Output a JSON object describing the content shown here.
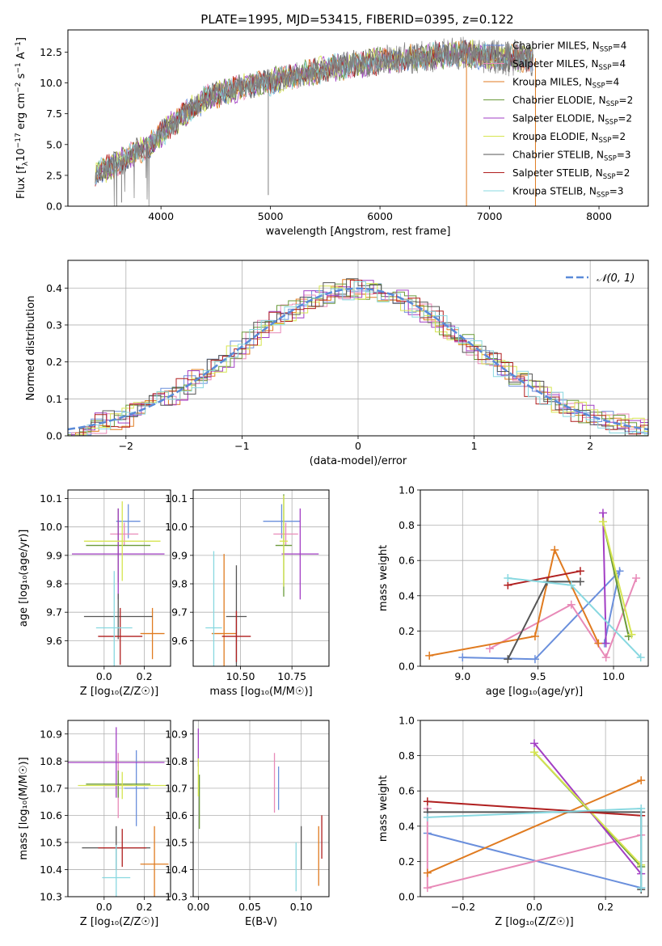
{
  "figure": {
    "title": "PLATE=1995, MJD=53415, FIBERID=0395, z=0.122"
  },
  "series_styles": [
    {
      "name": "Chabrier MILES, N$_{SSP}$=4",
      "label_main": "Chabrier MILES, N",
      "label_sub": "SSP",
      "label_tail": "=4",
      "color": "#6a8fdc"
    },
    {
      "name": "Salpeter MILES, N$_{SSP}$=4",
      "label_main": "Salpeter MILES, N",
      "label_sub": "SSP",
      "label_tail": "=4",
      "color": "#e88ab8"
    },
    {
      "name": "Kroupa MILES, N$_{SSP}$=4",
      "label_main": "Kroupa MILES, N",
      "label_sub": "SSP",
      "label_tail": "=4",
      "color": "#e07b20"
    },
    {
      "name": "Chabrier ELODIE, N$_{SSP}$=2",
      "label_main": "Chabrier ELODIE, N",
      "label_sub": "SSP",
      "label_tail": "=2",
      "color": "#6a9a3a"
    },
    {
      "name": "Salpeter ELODIE, N$_{SSP}$=2",
      "label_main": "Salpeter ELODIE, N",
      "label_sub": "SSP",
      "label_tail": "=2",
      "color": "#a23ec4"
    },
    {
      "name": "Kroupa ELODIE, N$_{SSP}$=2",
      "label_main": "Kroupa ELODIE, N",
      "label_sub": "SSP",
      "label_tail": "=2",
      "color": "#d6e550"
    },
    {
      "name": "Chabrier STELIB, N$_{SSP}$=3",
      "label_main": "Chabrier STELIB, N",
      "label_sub": "SSP",
      "label_tail": "=3",
      "color": "#555555"
    },
    {
      "name": "Salpeter STELIB, N$_{SSP}$=2",
      "label_main": "Salpeter STELIB, N",
      "label_sub": "SSP",
      "label_tail": "=2",
      "color": "#b01f1f"
    },
    {
      "name": "Kroupa STELIB, N$_{SSP}$=3",
      "label_main": "Kroupa STELIB, N",
      "label_sub": "SSP",
      "label_tail": "=3",
      "color": "#88d8e0"
    }
  ],
  "chart_data": [
    {
      "id": "spectrum",
      "type": "line",
      "title": "PLATE=1995, MJD=53415, FIBERID=0395, z=0.122",
      "xlabel": "wavelength [Angstrom, rest frame]",
      "ylabel_main": "Flux [f",
      "ylabel_sub": "λ",
      "ylabel_mid": "10",
      "ylabel_sup1": "−17",
      "ylabel_mid2": " erg cm",
      "ylabel_sup2": "−2",
      "ylabel_mid3": " s",
      "ylabel_sup3": "−1",
      "ylabel_mid4": " A",
      "ylabel_sup4": "−1",
      "ylabel_end": "]",
      "xlim": [
        3150,
        8450
      ],
      "ylim": [
        0,
        14.3
      ],
      "xticks": [
        4000,
        5000,
        6000,
        7000,
        8000
      ],
      "yticks": [
        0.0,
        2.5,
        5.0,
        7.5,
        10.0,
        12.5
      ],
      "ytick_labels": [
        "0.0",
        "2.5",
        "5.0",
        "7.5",
        "10.0",
        "12.5"
      ],
      "data_color": "#808080",
      "continuum": {
        "x": [
          3400,
          3500,
          3600,
          3700,
          3800,
          3900,
          4000,
          4100,
          4200,
          4300,
          4400,
          4600,
          4800,
          5000,
          5200,
          5400,
          5600,
          5800,
          6000,
          6200,
          6400,
          6600,
          6800,
          7000,
          7200,
          7400
        ],
        "y": [
          2.8,
          3.0,
          3.4,
          4.0,
          4.5,
          5.0,
          5.8,
          6.6,
          7.4,
          8.0,
          8.7,
          9.3,
          9.8,
          10.1,
          10.6,
          10.9,
          11.3,
          11.5,
          11.8,
          12.0,
          12.1,
          12.3,
          12.4,
          12.1,
          12.0,
          12.0
        ]
      }
    },
    {
      "id": "residuals",
      "type": "bar",
      "xlabel": "(data-model)/error",
      "ylabel": "Normed distribution",
      "xlim": [
        -2.5,
        2.5
      ],
      "ylim": [
        0,
        0.475
      ],
      "xticks": [
        -2,
        -1,
        0,
        1,
        2
      ],
      "xtick_labels": [
        "−2",
        "−1",
        "0",
        "1",
        "2"
      ],
      "yticks": [
        0.0,
        0.1,
        0.2,
        0.3,
        0.4
      ],
      "ytick_labels": [
        "0.0",
        "0.1",
        "0.2",
        "0.3",
        "0.4"
      ],
      "grid": true,
      "legend": "$\\mathcal{N}(0,1)$",
      "legend_position": "top-right",
      "gaussian": {
        "mean": 0,
        "sigma": 1,
        "color": "#5a8ad8"
      }
    },
    {
      "id": "z-age",
      "type": "scatter",
      "xlabel": "Z [log₁₀(Z/Z☉)]",
      "ylabel": "age  [log₁₀(age/yr)]",
      "xlim": [
        -0.18,
        0.33
      ],
      "ylim": [
        9.51,
        10.13
      ],
      "xticks": [
        0.0,
        0.2
      ],
      "xtick_labels": [
        "0.0",
        "0.2"
      ],
      "yticks": [
        9.6,
        9.7,
        9.8,
        9.9,
        10.0,
        10.1
      ],
      "ytick_labels": [
        "9.6",
        "9.7",
        "9.8",
        "9.9",
        "10.0",
        "10.1"
      ],
      "points": [
        {
          "series": 0,
          "x": 0.12,
          "y": 10.02,
          "xerr": 0.06,
          "yerr": 0.06
        },
        {
          "series": 1,
          "x": 0.1,
          "y": 9.975,
          "xerr": 0.07,
          "yerr": 0.04
        },
        {
          "series": 2,
          "x": 0.24,
          "y": 9.625,
          "xerr": 0.06,
          "yerr": 0.09
        },
        {
          "series": 3,
          "x": 0.07,
          "y": 9.935,
          "xerr": 0.16,
          "yerr": 0.13
        },
        {
          "series": 4,
          "x": 0.07,
          "y": 9.905,
          "xerr": 0.23,
          "yerr": 0.16
        },
        {
          "series": 5,
          "x": 0.09,
          "y": 9.95,
          "xerr": 0.19,
          "yerr": 0.14
        },
        {
          "series": 6,
          "x": 0.07,
          "y": 9.685,
          "xerr": 0.17,
          "yerr": 0.08
        },
        {
          "series": 7,
          "x": 0.08,
          "y": 9.615,
          "xerr": 0.11,
          "yerr": 0.1
        },
        {
          "series": 8,
          "x": 0.05,
          "y": 9.645,
          "xerr": 0.09,
          "yerr": 0.2
        }
      ]
    },
    {
      "id": "mass-age",
      "type": "scatter",
      "xlabel": "mass [log₁₀(M/M☉)]",
      "ylabel": "",
      "xlim": [
        10.27,
        10.93
      ],
      "ylim": [
        9.51,
        10.13
      ],
      "xticks": [
        10.5,
        10.75
      ],
      "xtick_labels": [
        "10.50",
        "10.75"
      ],
      "yticks": [
        9.6,
        9.7,
        9.8,
        9.9,
        10.0,
        10.1
      ],
      "ytick_labels": [
        "9.6",
        "9.7",
        "9.8",
        "9.9",
        "10.0",
        "10.1"
      ],
      "points": [
        {
          "series": 0,
          "x": 10.7,
          "y": 10.02,
          "xerr": 0.09,
          "yerr": 0.06
        },
        {
          "series": 1,
          "x": 10.72,
          "y": 9.975,
          "xerr": 0.06,
          "yerr": 0.04
        },
        {
          "series": 2,
          "x": 10.42,
          "y": 9.625,
          "xerr": 0.06,
          "yerr": 0.28
        },
        {
          "series": 3,
          "x": 10.71,
          "y": 9.935,
          "xerr": 0.04,
          "yerr": 0.18
        },
        {
          "series": 4,
          "x": 10.79,
          "y": 9.905,
          "xerr": 0.09,
          "yerr": 0.16
        },
        {
          "series": 5,
          "x": 10.71,
          "y": 9.95,
          "xerr": 0.02,
          "yerr": 0.16
        },
        {
          "series": 6,
          "x": 10.48,
          "y": 9.685,
          "xerr": 0.05,
          "yerr": 0.18
        },
        {
          "series": 7,
          "x": 10.48,
          "y": 9.615,
          "xerr": 0.07,
          "yerr": 0.09
        },
        {
          "series": 8,
          "x": 10.37,
          "y": 9.645,
          "xerr": 0.04,
          "yerr": 0.27
        }
      ]
    },
    {
      "id": "age-massweight",
      "type": "line",
      "xlabel": "age  [log₁₀(age/yr)]",
      "ylabel": "mass weight",
      "xlim": [
        8.72,
        10.23
      ],
      "ylim": [
        0.0,
        1.0
      ],
      "xticks": [
        9.0,
        9.5,
        10.0
      ],
      "xtick_labels": [
        "9.0",
        "9.5",
        "10.0"
      ],
      "yticks": [
        0.0,
        0.2,
        0.4,
        0.6,
        0.8,
        1.0
      ],
      "ytick_labels": [
        "0.0",
        "0.2",
        "0.4",
        "0.6",
        "0.8",
        "1.0"
      ],
      "series": [
        {
          "series": 0,
          "x": [
            9.0,
            9.48,
            10.04,
            9.94
          ],
          "y": [
            0.05,
            0.04,
            0.54,
            0.13
          ]
        },
        {
          "series": 1,
          "x": [
            9.18,
            9.72,
            9.95,
            10.15
          ],
          "y": [
            0.1,
            0.35,
            0.05,
            0.5
          ]
        },
        {
          "series": 2,
          "x": [
            8.78,
            9.48,
            9.61,
            9.9
          ],
          "y": [
            0.06,
            0.17,
            0.66,
            0.13
          ]
        },
        {
          "series": 3,
          "x": [
            9.93,
            10.1
          ],
          "y": [
            0.82,
            0.17
          ]
        },
        {
          "series": 4,
          "x": [
            9.93,
            9.95
          ],
          "y": [
            0.87,
            0.13
          ]
        },
        {
          "series": 5,
          "x": [
            9.93,
            10.12
          ],
          "y": [
            0.82,
            0.18
          ]
        },
        {
          "series": 6,
          "x": [
            9.3,
            9.56,
            9.78
          ],
          "y": [
            0.04,
            0.48,
            0.48
          ]
        },
        {
          "series": 7,
          "x": [
            9.3,
            9.78
          ],
          "y": [
            0.46,
            0.54
          ]
        },
        {
          "series": 8,
          "x": [
            9.3,
            9.72,
            10.18
          ],
          "y": [
            0.5,
            0.46,
            0.05
          ]
        }
      ]
    },
    {
      "id": "z-mass",
      "type": "scatter",
      "xlabel": "Z [log₁₀(Z/Z☉)]",
      "ylabel": "mass [log₁₀(M/M☉)]",
      "xlim": [
        -0.18,
        0.33
      ],
      "ylim": [
        10.3,
        10.95
      ],
      "xticks": [
        0.0,
        0.2
      ],
      "xtick_labels": [
        "0.0",
        "0.2"
      ],
      "yticks": [
        10.3,
        10.4,
        10.5,
        10.6,
        10.7,
        10.8,
        10.9
      ],
      "ytick_labels": [
        "10.3",
        "10.4",
        "10.5",
        "10.6",
        "10.7",
        "10.8",
        "10.9"
      ],
      "points": [
        {
          "series": 0,
          "x": 0.16,
          "y": 10.7,
          "xerr": 0.06,
          "yerr": 0.14
        },
        {
          "series": 1,
          "x": 0.07,
          "y": 10.71,
          "xerr": 0.07,
          "yerr": 0.12
        },
        {
          "series": 2,
          "x": 0.25,
          "y": 10.42,
          "xerr": 0.07,
          "yerr": 0.14
        },
        {
          "series": 3,
          "x": 0.07,
          "y": 10.715,
          "xerr": 0.16,
          "yerr": 0.05
        },
        {
          "series": 4,
          "x": 0.06,
          "y": 10.795,
          "xerr": 0.24,
          "yerr": 0.13
        },
        {
          "series": 5,
          "x": 0.09,
          "y": 10.71,
          "xerr": 0.22,
          "yerr": 0.05
        },
        {
          "series": 6,
          "x": 0.06,
          "y": 10.48,
          "xerr": 0.17,
          "yerr": 0.08
        },
        {
          "series": 7,
          "x": 0.09,
          "y": 10.48,
          "xerr": 0.12,
          "yerr": 0.07
        },
        {
          "series": 8,
          "x": 0.06,
          "y": 10.37,
          "xerr": 0.07,
          "yerr": 0.12
        }
      ]
    },
    {
      "id": "ebv-mass",
      "type": "scatter",
      "xlabel": "E(B-V)",
      "ylabel": "",
      "xlim": [
        -0.005,
        0.127
      ],
      "ylim": [
        10.3,
        10.95
      ],
      "xticks": [
        0.0,
        0.05,
        0.1
      ],
      "xtick_labels": [
        "0.00",
        "0.05",
        "0.10"
      ],
      "yticks": [
        10.3,
        10.4,
        10.5,
        10.6,
        10.7,
        10.8,
        10.9
      ],
      "ytick_labels": [
        "10.3",
        "10.4",
        "10.5",
        "10.6",
        "10.7",
        "10.8",
        "10.9"
      ],
      "points": [
        {
          "series": 0,
          "x": 0.078,
          "y": 10.7,
          "yerr": 0.08
        },
        {
          "series": 1,
          "x": 0.074,
          "y": 10.72,
          "yerr": 0.11
        },
        {
          "series": 2,
          "x": 0.117,
          "y": 10.45,
          "yerr": 0.11
        },
        {
          "series": 3,
          "x": 0.001,
          "y": 10.65,
          "yerr": 0.1
        },
        {
          "series": 4,
          "x": 0.0,
          "y": 10.85,
          "yerr": 0.07
        },
        {
          "series": 5,
          "x": 0.0,
          "y": 10.74,
          "yerr": 0.07
        },
        {
          "series": 6,
          "x": 0.1,
          "y": 10.48,
          "yerr": 0.08
        },
        {
          "series": 7,
          "x": 0.12,
          "y": 10.52,
          "yerr": 0.08
        },
        {
          "series": 8,
          "x": 0.095,
          "y": 10.41,
          "yerr": 0.09
        }
      ]
    },
    {
      "id": "z-massweight",
      "type": "line",
      "xlabel": "Z [log₁₀(Z/Z☉)]",
      "ylabel": "mass weight",
      "xlim": [
        -0.32,
        0.32
      ],
      "ylim": [
        0.0,
        1.0
      ],
      "xticks": [
        -0.2,
        0.0,
        0.2
      ],
      "xtick_labels": [
        "−0.2",
        "0.0",
        "0.2"
      ],
      "yticks": [
        0.0,
        0.2,
        0.4,
        0.6,
        0.8,
        1.0
      ],
      "ytick_labels": [
        "0.0",
        "0.2",
        "0.4",
        "0.6",
        "0.8",
        "1.0"
      ],
      "series": [
        {
          "series": 0,
          "x": [
            -0.3,
            0.3
          ],
          "y": [
            0.36,
            0.05
          ]
        },
        {
          "series": 1,
          "x": [
            -0.3,
            -0.3,
            0.3
          ],
          "y": [
            0.5,
            0.05,
            0.35
          ]
        },
        {
          "series": 2,
          "x": [
            -0.3,
            0.3
          ],
          "y": [
            0.135,
            0.66
          ]
        },
        {
          "series": 3,
          "x": [
            0.0,
            0.3
          ],
          "y": [
            0.82,
            0.17
          ]
        },
        {
          "series": 4,
          "x": [
            0.0,
            0.3
          ],
          "y": [
            0.87,
            0.13
          ]
        },
        {
          "series": 5,
          "x": [
            0.0,
            0.3
          ],
          "y": [
            0.82,
            0.18
          ]
        },
        {
          "series": 6,
          "x": [
            -0.3,
            0.3,
            0.3
          ],
          "y": [
            0.48,
            0.48,
            0.04
          ]
        },
        {
          "series": 7,
          "x": [
            -0.3,
            0.3
          ],
          "y": [
            0.54,
            0.46
          ]
        },
        {
          "series": 8,
          "x": [
            -0.3,
            0.3,
            0.3
          ],
          "y": [
            0.45,
            0.5,
            0.05
          ]
        }
      ]
    }
  ]
}
